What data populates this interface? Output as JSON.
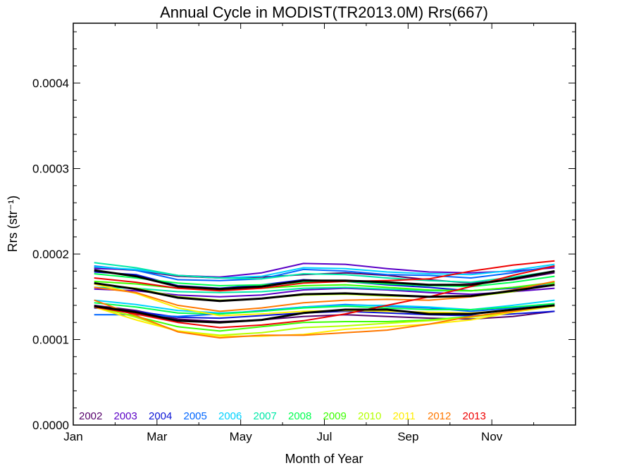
{
  "chart_data": {
    "type": "line",
    "title": "Annual Cycle in MODIST(TR2013.0M) Rrs(667)",
    "xlabel": "Month of Year",
    "ylabel": "Rrs (str⁻¹)",
    "xlim": [
      0,
      12
    ],
    "ylim": [
      0,
      0.00047
    ],
    "x_ticks": [
      {
        "value": 0,
        "label": "Jan"
      },
      {
        "value": 2,
        "label": "Mar"
      },
      {
        "value": 4,
        "label": "May"
      },
      {
        "value": 6,
        "label": "Jul"
      },
      {
        "value": 8,
        "label": "Sep"
      },
      {
        "value": 10,
        "label": "Nov"
      }
    ],
    "y_ticks": [
      {
        "value": 0.0,
        "label": "0.0000"
      },
      {
        "value": 0.0001,
        "label": "0.0001"
      },
      {
        "value": 0.0002,
        "label": "0.0002"
      },
      {
        "value": 0.0003,
        "label": "0.0003"
      },
      {
        "value": 0.0004,
        "label": "0.0004"
      }
    ],
    "x": [
      0.5,
      1.5,
      2.5,
      3.5,
      4.5,
      5.5,
      6.5,
      7.5,
      8.5,
      9.5,
      10.5,
      11.5
    ],
    "legend": {
      "placement": "bottom-left"
    },
    "series": [
      {
        "name": "2002",
        "color": "#55006b",
        "groups": [
          [
            0.000184,
            0.000181,
            0.000174,
            0.000172,
            0.000173,
            0.000176,
            0.000178,
            0.000175,
            0.00017,
            0.000166,
            0.00017,
            0.000178
          ],
          [
            0.00014,
            0.000134,
            0.000124,
            0.000121,
            0.000123,
            0.000127,
            0.000129,
            0.000127,
            0.000125,
            0.000124,
            0.000127,
            0.000133
          ]
        ]
      },
      {
        "name": "2003",
        "color": "#5a00c6",
        "groups": [
          [
            0.000183,
            0.000182,
            0.000175,
            0.000173,
            0.000178,
            0.000189,
            0.000188,
            0.000183,
            0.000179,
            0.000178,
            0.00018,
            0.000184
          ],
          [
            0.000159,
            0.000157,
            0.000152,
            0.00015,
            0.000152,
            0.000158,
            0.00016,
            0.000158,
            0.000155,
            0.000153,
            0.000156,
            0.00016
          ]
        ]
      },
      {
        "name": "2004",
        "color": "#0a14d6",
        "groups": [
          [
            0.000179,
            0.000176,
            0.000163,
            0.00016,
            0.000164,
            0.00017,
            0.000168,
            0.000164,
            0.000161,
            0.000157,
            0.00016,
            0.000165
          ],
          [
            0.000137,
            0.000133,
            0.000126,
            0.000125,
            0.000128,
            0.000131,
            0.000133,
            0.000131,
            0.000129,
            0.000128,
            0.00013,
            0.000133
          ]
        ]
      },
      {
        "name": "2005",
        "color": "#0066ff",
        "groups": [
          [
            0.000186,
            0.000181,
            0.00017,
            0.000169,
            0.000171,
            0.000182,
            0.00018,
            0.000176,
            0.000175,
            0.000172,
            0.000178,
            0.000186
          ],
          [
            0.000129,
            0.000129,
            0.000127,
            0.00013,
            0.000134,
            0.000138,
            0.000141,
            0.000139,
            0.000137,
            0.000133,
            0.000137,
            0.000142
          ]
        ]
      },
      {
        "name": "2006",
        "color": "#00d2ff",
        "groups": [
          [
            0.000185,
            0.000182,
            0.000175,
            0.000172,
            0.000174,
            0.000184,
            0.000183,
            0.000179,
            0.000177,
            0.000176,
            0.000181,
            0.000188
          ],
          [
            0.000146,
            0.000141,
            0.000134,
            0.000131,
            0.000133,
            0.000138,
            0.00014,
            0.00014,
            0.000138,
            0.000135,
            0.00014,
            0.000146
          ]
        ]
      },
      {
        "name": "2007",
        "color": "#00e8a8",
        "groups": [
          [
            0.00019,
            0.000184,
            0.000175,
            0.000172,
            0.000171,
            0.000177,
            0.000176,
            0.000172,
            0.000169,
            0.000167,
            0.000173,
            0.00018
          ],
          [
            0.000161,
            0.00016,
            0.000156,
            0.000155,
            0.000156,
            0.00016,
            0.000161,
            0.000159,
            0.000157,
            0.000157,
            0.000161,
            0.000166
          ]
        ]
      },
      {
        "name": "2008",
        "color": "#00ff50",
        "groups": [
          [
            0.000177,
            0.000172,
            0.000166,
            0.000163,
            0.000164,
            0.000167,
            0.000168,
            0.000165,
            0.000163,
            0.000162,
            0.000167,
            0.000174
          ],
          [
            0.000143,
            0.000138,
            0.000131,
            0.00013,
            0.000133,
            0.000137,
            0.000139,
            0.000137,
            0.000135,
            0.000135,
            0.000138,
            0.000142
          ]
        ]
      },
      {
        "name": "2009",
        "color": "#3cff00",
        "groups": [
          [
            0.000168,
            0.000165,
            0.00016,
            0.000158,
            0.00016,
            0.000163,
            0.000164,
            0.000161,
            0.000158,
            0.000157,
            0.000161,
            0.000167
          ],
          [
            0.000138,
            0.000127,
            0.000115,
            0.00011,
            0.000115,
            0.00012,
            0.000121,
            0.000121,
            0.000123,
            0.000127,
            0.000133,
            0.000139
          ]
        ]
      },
      {
        "name": "2010",
        "color": "#b4ff00",
        "groups": [
          [
            0.000165,
            0.00016,
            0.00015,
            0.000146,
            0.000148,
            0.000152,
            0.000153,
            0.000151,
            0.00015,
            0.00015,
            0.000156,
            0.000165
          ],
          [
            0.000139,
            0.000126,
            0.00011,
            0.000105,
            0.000108,
            0.000114,
            0.000116,
            0.000119,
            0.000122,
            0.000126,
            0.000132,
            0.000139
          ]
        ]
      },
      {
        "name": "2011",
        "color": "#ffee00",
        "groups": [
          [
            0.000165,
            0.000154,
            0.000137,
            0.000128,
            0.00013,
            0.000133,
            0.000134,
            0.000133,
            0.000132,
            0.000131,
            0.000134,
            0.000139
          ],
          [
            0.000138,
            0.000123,
            0.00011,
            0.000104,
            0.000104,
            0.000106,
            0.000112,
            0.000115,
            0.000118,
            0.000123,
            0.000132,
            0.00014
          ]
        ]
      },
      {
        "name": "2012",
        "color": "#ff7800",
        "groups": [
          [
            0.000161,
            0.000155,
            0.00014,
            0.000133,
            0.000137,
            0.000143,
            0.000146,
            0.000147,
            0.000146,
            0.00015,
            0.000158,
            0.000168
          ],
          [
            0.000146,
            0.000128,
            0.000109,
            0.000102,
            0.000105,
            0.000105,
            0.000108,
            0.000111,
            0.000118,
            0.000127,
            0.000133,
            0.00014
          ]
        ]
      },
      {
        "name": "2013",
        "color": "#ee0000",
        "groups": [
          [
            0.000172,
            0.000167,
            0.00016,
            0.000157,
            0.00016,
            0.000166,
            0.000168,
            0.000169,
            0.000171,
            0.00018,
            0.000187,
            0.000192
          ],
          [
            0.000138,
            0.00013,
            0.00012,
            0.000114,
            0.000117,
            0.000122,
            0.00013,
            0.00014,
            0.00015,
            0.000162,
            0.000175,
            0.000186
          ]
        ]
      }
    ],
    "mean_lines": {
      "color": "#000000",
      "groups": [
        [
          0.000181,
          0.000174,
          0.000162,
          0.000159,
          0.000162,
          0.000169,
          0.000169,
          0.000167,
          0.000164,
          0.000164,
          0.000171,
          0.00018
        ],
        [
          0.000166,
          0.000159,
          0.000149,
          0.000145,
          0.000148,
          0.000153,
          0.000154,
          0.000152,
          0.00015,
          0.000151,
          0.000157,
          0.000164
        ],
        [
          0.000139,
          0.000132,
          0.000122,
          0.00012,
          0.000123,
          0.000131,
          0.000135,
          0.000135,
          0.00013,
          0.00013,
          0.000135,
          0.00014
        ]
      ]
    }
  }
}
